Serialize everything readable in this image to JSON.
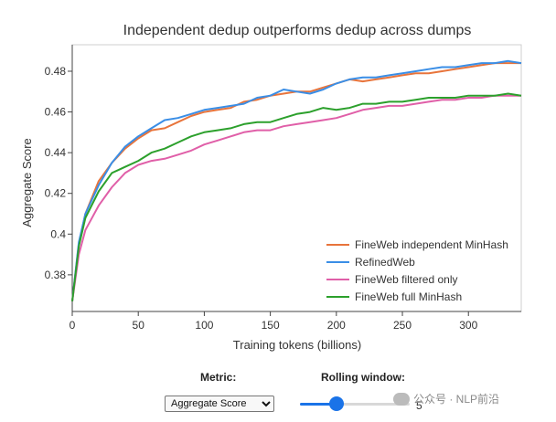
{
  "chart_data": {
    "type": "line",
    "title": "Independent dedup outperforms dedup across dumps",
    "xlabel": "Training tokens (billions)",
    "ylabel": "Aggregate Score",
    "xlim": [
      0,
      340
    ],
    "ylim": [
      0.362,
      0.493
    ],
    "xticks": [
      0,
      50,
      100,
      150,
      200,
      250,
      300
    ],
    "yticks": [
      0.38,
      0.4,
      0.42,
      0.44,
      0.46,
      0.48
    ],
    "ytick_labels": [
      "0.38",
      "0.4",
      "0.42",
      "0.44",
      "0.46",
      "0.48"
    ],
    "grid": false,
    "legend_position": "bottom-right",
    "series": [
      {
        "name": "FineWeb independent MinHash",
        "color": "#e8743b",
        "x": [
          0,
          5,
          10,
          20,
          30,
          40,
          50,
          60,
          70,
          80,
          90,
          100,
          110,
          120,
          130,
          140,
          150,
          160,
          170,
          180,
          190,
          200,
          210,
          220,
          230,
          240,
          250,
          260,
          270,
          280,
          290,
          300,
          310,
          320,
          330,
          340
        ],
        "y": [
          0.367,
          0.395,
          0.41,
          0.426,
          0.435,
          0.442,
          0.447,
          0.451,
          0.452,
          0.455,
          0.458,
          0.46,
          0.461,
          0.462,
          0.465,
          0.466,
          0.468,
          0.469,
          0.47,
          0.47,
          0.472,
          0.474,
          0.476,
          0.475,
          0.476,
          0.477,
          0.478,
          0.479,
          0.479,
          0.48,
          0.481,
          0.482,
          0.483,
          0.484,
          0.484,
          0.484
        ]
      },
      {
        "name": "RefinedWeb",
        "color": "#3a8ee6",
        "x": [
          0,
          5,
          10,
          20,
          30,
          40,
          50,
          60,
          70,
          80,
          90,
          100,
          110,
          120,
          130,
          140,
          150,
          160,
          170,
          180,
          190,
          200,
          210,
          220,
          230,
          240,
          250,
          260,
          270,
          280,
          290,
          300,
          310,
          320,
          330,
          340
        ],
        "y": [
          0.367,
          0.396,
          0.41,
          0.424,
          0.435,
          0.443,
          0.448,
          0.452,
          0.456,
          0.457,
          0.459,
          0.461,
          0.462,
          0.463,
          0.464,
          0.467,
          0.468,
          0.471,
          0.47,
          0.469,
          0.471,
          0.474,
          0.476,
          0.477,
          0.477,
          0.478,
          0.479,
          0.48,
          0.481,
          0.482,
          0.482,
          0.483,
          0.484,
          0.484,
          0.485,
          0.484
        ]
      },
      {
        "name": "FineWeb filtered only",
        "color": "#e05fa8",
        "x": [
          0,
          5,
          10,
          20,
          30,
          40,
          50,
          60,
          70,
          80,
          90,
          100,
          110,
          120,
          130,
          140,
          150,
          160,
          170,
          180,
          190,
          200,
          210,
          220,
          230,
          240,
          250,
          260,
          270,
          280,
          290,
          300,
          310,
          320,
          330,
          340
        ],
        "y": [
          0.367,
          0.39,
          0.402,
          0.414,
          0.423,
          0.43,
          0.434,
          0.436,
          0.437,
          0.439,
          0.441,
          0.444,
          0.446,
          0.448,
          0.45,
          0.451,
          0.451,
          0.453,
          0.454,
          0.455,
          0.456,
          0.457,
          0.459,
          0.461,
          0.462,
          0.463,
          0.463,
          0.464,
          0.465,
          0.466,
          0.466,
          0.467,
          0.467,
          0.468,
          0.468,
          0.468
        ]
      },
      {
        "name": "FineWeb full MinHash",
        "color": "#2ca02c",
        "x": [
          0,
          5,
          10,
          20,
          30,
          40,
          50,
          60,
          70,
          80,
          90,
          100,
          110,
          120,
          130,
          140,
          150,
          160,
          170,
          180,
          190,
          200,
          210,
          220,
          230,
          240,
          250,
          260,
          270,
          280,
          290,
          300,
          310,
          320,
          330,
          340
        ],
        "y": [
          0.367,
          0.394,
          0.408,
          0.421,
          0.43,
          0.433,
          0.436,
          0.44,
          0.442,
          0.445,
          0.448,
          0.45,
          0.451,
          0.452,
          0.454,
          0.455,
          0.455,
          0.457,
          0.459,
          0.46,
          0.462,
          0.461,
          0.462,
          0.464,
          0.464,
          0.465,
          0.465,
          0.466,
          0.467,
          0.467,
          0.467,
          0.468,
          0.468,
          0.468,
          0.469,
          0.468
        ]
      }
    ]
  },
  "controls": {
    "metric_label": "Metric:",
    "metric_value": "Aggregate Score",
    "rolling_label": "Rolling window:",
    "rolling_value": 5,
    "rolling_min": 0,
    "rolling_max": 15
  },
  "watermark": {
    "text": "公众号 · NLP前沿"
  },
  "colors": {
    "accent": "#1a73e8"
  }
}
